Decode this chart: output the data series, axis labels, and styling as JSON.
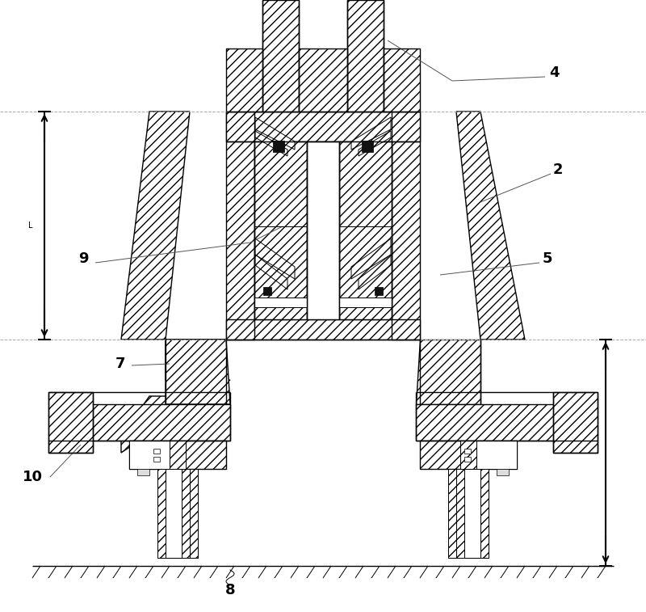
{
  "bg_color": "#ffffff",
  "lc": "#000000",
  "hc": "#555555",
  "fig_w": 8.0,
  "fig_h": 7.57,
  "label_fs": 13,
  "note_fs": 8
}
